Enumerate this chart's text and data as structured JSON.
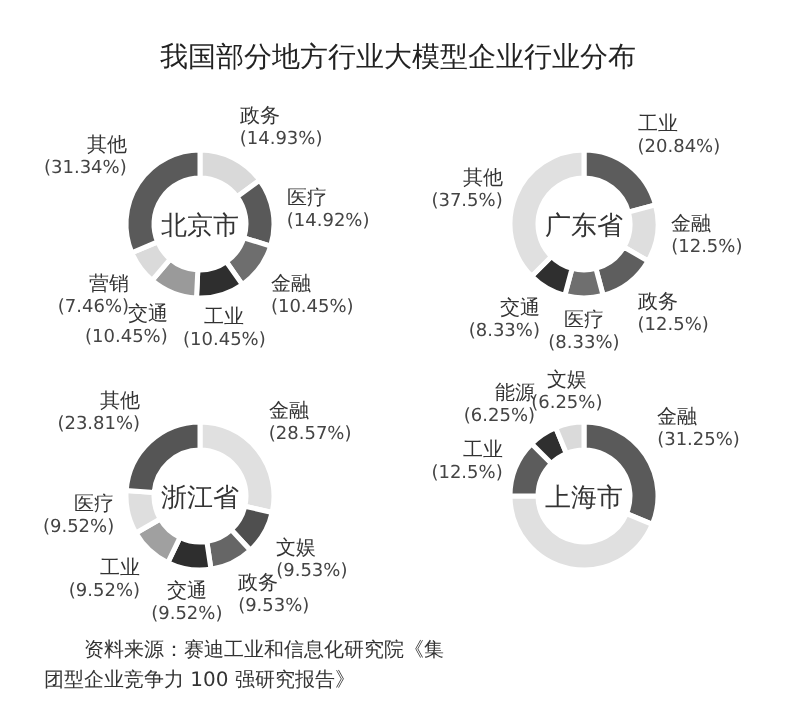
{
  "chart_data": [
    {
      "type": "other",
      "title": "我国部分地方行业大模型企业行业分布",
      "annotations": [
        "资料来源：赛迪工业和信息化研究院《集团型企业竞争力 100 强研究报告》"
      ]
    },
    {
      "type": "donut",
      "title": "北京市",
      "categories": [
        "政务",
        "医疗",
        "金融",
        "工业",
        "交通",
        "营销",
        "其他"
      ],
      "values": [
        14.93,
        14.92,
        10.45,
        10.45,
        10.45,
        7.46,
        31.34
      ],
      "value_labels": [
        "(14.93%)",
        "(14.92%)",
        "(10.45%)",
        "(10.45%)",
        "(10.45%)",
        "(7.46%)",
        "(31.34%)"
      ],
      "colors": [
        "#d9d9d9",
        "#595959",
        "#6e6e6e",
        "#2e2e2e",
        "#9a9a9a",
        "#dadada",
        "#5a5a5a"
      ]
    },
    {
      "type": "donut",
      "title": "广东省",
      "categories": [
        "工业",
        "金融",
        "政务",
        "医疗",
        "交通",
        "其他"
      ],
      "values": [
        20.84,
        12.5,
        12.5,
        8.33,
        8.33,
        37.5
      ],
      "value_labels": [
        "(20.84%)",
        "(12.5%)",
        "(12.5%)",
        "(8.33%)",
        "(8.33%)",
        "(37.5%)"
      ],
      "colors": [
        "#5c5c5c",
        "#dedede",
        "#5e5e5e",
        "#6f6f6f",
        "#2f2f2f",
        "#e0e0e0"
      ]
    },
    {
      "type": "donut",
      "title": "浙江省",
      "categories": [
        "金融",
        "文娱",
        "政务",
        "交通",
        "工业",
        "医疗",
        "其他"
      ],
      "values": [
        28.57,
        9.53,
        9.53,
        9.52,
        9.52,
        9.52,
        23.81
      ],
      "value_labels": [
        "(28.57%)",
        "(9.53%)",
        "(9.53%)",
        "(9.52%)",
        "(9.52%)",
        "(9.52%)",
        "(23.81%)"
      ],
      "colors": [
        "#e0e0e0",
        "#4f4f4f",
        "#666666",
        "#2e2e2e",
        "#a0a0a0",
        "#dedede",
        "#555555"
      ]
    },
    {
      "type": "donut",
      "title": "上海市",
      "categories": [
        "金融",
        null,
        "工业",
        "能源",
        "文娱"
      ],
      "values": [
        31.25,
        43.75,
        12.5,
        6.25,
        6.25
      ],
      "value_labels": [
        "(31.25%)",
        null,
        "(12.5%)",
        "(6.25%)",
        "(6.25%)"
      ],
      "colors": [
        "#5a5a5a",
        "#e0e0e0",
        "#5c5c5c",
        "#2f2f2f",
        "#dadada"
      ]
    }
  ]
}
